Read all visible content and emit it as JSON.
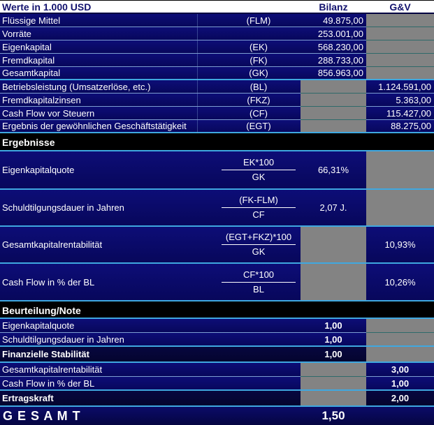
{
  "header": {
    "title": "Werte in 1.000 USD",
    "col_bilanz": "Bilanz",
    "col_gv": "G&V"
  },
  "sections": {
    "ergebnisse": "Ergebnisse",
    "beurteilung": "Beurteilung/Note"
  },
  "balance": {
    "rows": [
      {
        "label": "Flüssige Mittel",
        "abbr": "(FLM)",
        "bilanz": "49.875,00",
        "gv": ""
      },
      {
        "label": "Vorräte",
        "abbr": "",
        "bilanz": "253.001,00",
        "gv": ""
      },
      {
        "label": "Eigenkapital",
        "abbr": "(EK)",
        "bilanz": "568.230,00",
        "gv": ""
      },
      {
        "label": "Fremdkapital",
        "abbr": "(FK)",
        "bilanz": "288.733,00",
        "gv": ""
      },
      {
        "label": "Gesamtkapital",
        "abbr": "(GK)",
        "bilanz": "856.963,00",
        "gv": ""
      },
      {
        "label": "Betriebsleistung (Umsatzerlöse, etc.)",
        "abbr": "(BL)",
        "bilanz": "",
        "gv": "1.124.591,00"
      },
      {
        "label": "Fremdkapitalzinsen",
        "abbr": "(FKZ)",
        "bilanz": "",
        "gv": "5.363,00"
      },
      {
        "label": "Cash Flow vor Steuern",
        "abbr": "(CF)",
        "bilanz": "",
        "gv": "115.427,00"
      },
      {
        "label": "Ergebnis der gewöhnlichen Geschäftstätigkeit",
        "abbr": "(EGT)",
        "bilanz": "",
        "gv": "88.275,00"
      }
    ]
  },
  "ratios": {
    "rows": [
      {
        "label": "Eigenkapitalquote",
        "numerator": "EK*100",
        "denominator": "GK",
        "bilanz": "66,31%",
        "gv": ""
      },
      {
        "label": "Schuldtilgungsdauer in Jahren",
        "numerator": "(FK-FLM)",
        "denominator": "CF",
        "bilanz": "2,07 J.",
        "gv": ""
      },
      {
        "label": "Gesamtkapitalrentabilität",
        "numerator": "(EGT+FKZ)*100",
        "denominator": "GK",
        "bilanz": "",
        "gv": "10,93%"
      },
      {
        "label": "Cash Flow in % der BL",
        "numerator": "CF*100",
        "denominator": "BL",
        "bilanz": "",
        "gv": "10,26%"
      }
    ]
  },
  "notes": {
    "rows": [
      {
        "label": "Eigenkapitalquote",
        "bilanz": "1,00",
        "gv": ""
      },
      {
        "label": "Schuldtilgungsdauer in Jahren",
        "bilanz": "1,00",
        "gv": ""
      },
      {
        "label": "Finanzielle Stabilität",
        "bilanz": "1,00",
        "gv": ""
      },
      {
        "label": "Gesamtkapitalrentabilität",
        "bilanz": "",
        "gv": "3,00"
      },
      {
        "label": "Cash Flow in % der BL",
        "bilanz": "",
        "gv": "1,00"
      },
      {
        "label": "Ertragskraft",
        "bilanz": "",
        "gv": "2,00"
      }
    ]
  },
  "total": {
    "label": "G E S A M T",
    "value": "1,50"
  },
  "colors": {
    "row_navy": "#0a0a68",
    "cell_gray": "#838383",
    "accent_cyan": "#3fa8e0",
    "separator_light": "#7d9ed2",
    "separator_teal": "#2e6a6a",
    "header_bg": "#ffffff",
    "header_text": "#12126e",
    "section_bg": "#000000",
    "text": "#ffffff"
  }
}
